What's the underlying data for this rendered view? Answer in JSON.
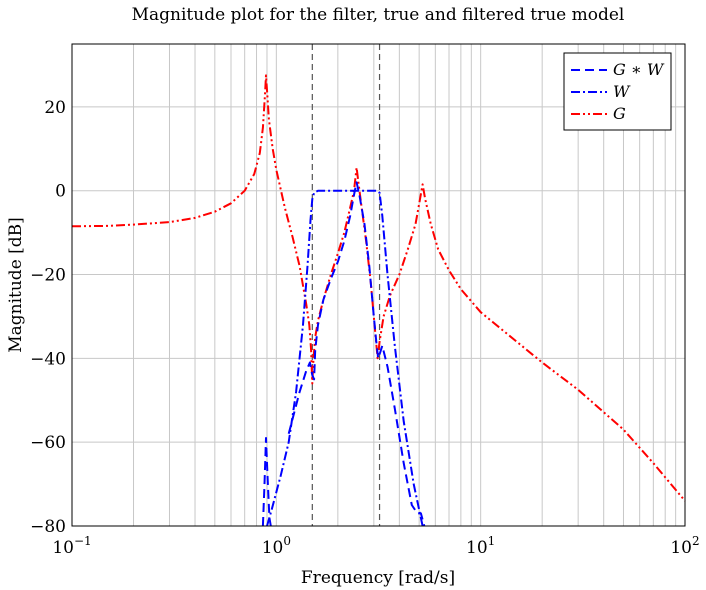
{
  "chart_data": {
    "type": "line",
    "title": "Magnitude plot for the filter, true and filtered true model",
    "xlabel": "Frequency [rad/s]",
    "ylabel": "Magnitude [dB]",
    "xscale": "log",
    "xlim": [
      0.1,
      100
    ],
    "ylim": [
      -80,
      35
    ],
    "grid": true,
    "legend_position": "top-right",
    "x_ticks": [
      {
        "value": 0.1,
        "base": "10",
        "exp": "−1"
      },
      {
        "value": 1,
        "base": "10",
        "exp": "0"
      },
      {
        "value": 10,
        "base": "10",
        "exp": "1"
      },
      {
        "value": 100,
        "base": "10",
        "exp": "2"
      }
    ],
    "y_ticks": [
      {
        "value": -80,
        "label": "−80"
      },
      {
        "value": -60,
        "label": "−60"
      },
      {
        "value": -40,
        "label": "−40"
      },
      {
        "value": -20,
        "label": "−20"
      },
      {
        "value": 0,
        "label": "0"
      },
      {
        "value": 20,
        "label": "20"
      }
    ],
    "vertical_markers": [
      1.5,
      3.2
    ],
    "series": [
      {
        "name": "G ∗ W",
        "color": "#0000ff",
        "dash": "dashed",
        "points": [
          [
            0.86,
            -80
          ],
          [
            0.875,
            -70
          ],
          [
            0.89,
            -59
          ],
          [
            0.905,
            -68
          ],
          [
            0.925,
            -78
          ],
          [
            0.94,
            -80
          ]
        ],
        "points2": [
          [
            1.15,
            -58
          ],
          [
            1.3,
            -48
          ],
          [
            1.4,
            -43
          ],
          [
            1.46,
            -41
          ],
          [
            1.5,
            -44
          ],
          [
            1.53,
            -45
          ],
          [
            1.55,
            -38
          ],
          [
            1.6,
            -32
          ],
          [
            1.7,
            -26
          ],
          [
            1.85,
            -21
          ],
          [
            2.0,
            -17
          ],
          [
            2.15,
            -12
          ],
          [
            2.3,
            -6
          ],
          [
            2.4,
            -1
          ],
          [
            2.47,
            2
          ],
          [
            2.55,
            -1
          ],
          [
            2.7,
            -8
          ],
          [
            2.85,
            -18
          ],
          [
            3.0,
            -30
          ],
          [
            3.1,
            -37
          ],
          [
            3.15,
            -40
          ],
          [
            3.2,
            -39
          ],
          [
            3.3,
            -37
          ],
          [
            3.5,
            -42
          ],
          [
            3.8,
            -52
          ],
          [
            4.2,
            -65
          ],
          [
            4.6,
            -75
          ],
          [
            4.9,
            -77
          ],
          [
            5.1,
            -77
          ],
          [
            5.3,
            -80
          ]
        ]
      },
      {
        "name": "W",
        "color": "#0000ff",
        "dash": "dashdot",
        "points": [
          [
            0.9,
            -80
          ],
          [
            0.95,
            -76
          ],
          [
            1.05,
            -68
          ],
          [
            1.15,
            -60
          ],
          [
            1.25,
            -48
          ],
          [
            1.35,
            -32
          ],
          [
            1.42,
            -18
          ],
          [
            1.47,
            -7
          ],
          [
            1.5,
            -2
          ],
          [
            1.53,
            -0.5
          ],
          [
            1.6,
            0
          ],
          [
            2.0,
            0
          ],
          [
            2.8,
            0
          ],
          [
            3.1,
            0
          ],
          [
            3.2,
            -0.5
          ],
          [
            3.3,
            -6
          ],
          [
            3.5,
            -20
          ],
          [
            3.8,
            -37
          ],
          [
            4.2,
            -55
          ],
          [
            4.7,
            -70
          ],
          [
            5.2,
            -80
          ]
        ]
      },
      {
        "name": "G",
        "color": "#ff0000",
        "dash": "dashdotdot",
        "points": [
          [
            0.1,
            -8.5
          ],
          [
            0.15,
            -8.4
          ],
          [
            0.2,
            -8.1
          ],
          [
            0.3,
            -7.5
          ],
          [
            0.4,
            -6.5
          ],
          [
            0.5,
            -5
          ],
          [
            0.6,
            -3
          ],
          [
            0.7,
            0
          ],
          [
            0.78,
            4
          ],
          [
            0.83,
            9
          ],
          [
            0.86,
            15
          ],
          [
            0.88,
            23
          ],
          [
            0.89,
            27.5
          ],
          [
            0.9,
            24
          ],
          [
            0.92,
            17
          ],
          [
            0.96,
            10
          ],
          [
            1.0,
            5
          ],
          [
            1.1,
            -4
          ],
          [
            1.2,
            -11
          ],
          [
            1.3,
            -18
          ],
          [
            1.4,
            -27
          ],
          [
            1.45,
            -32
          ],
          [
            1.48,
            -38
          ],
          [
            1.5,
            -46
          ],
          [
            1.52,
            -40
          ],
          [
            1.55,
            -35
          ],
          [
            1.6,
            -31
          ],
          [
            1.7,
            -26
          ],
          [
            1.85,
            -20
          ],
          [
            2.0,
            -15
          ],
          [
            2.15,
            -10
          ],
          [
            2.3,
            -4
          ],
          [
            2.4,
            0
          ],
          [
            2.47,
            5.5
          ],
          [
            2.52,
            2
          ],
          [
            2.6,
            -3
          ],
          [
            2.75,
            -12
          ],
          [
            2.9,
            -22
          ],
          [
            3.05,
            -34
          ],
          [
            3.13,
            -40
          ],
          [
            3.2,
            -36
          ],
          [
            3.35,
            -30
          ],
          [
            3.6,
            -25
          ],
          [
            4.0,
            -20
          ],
          [
            4.4,
            -14
          ],
          [
            4.8,
            -8
          ],
          [
            5.05,
            -2
          ],
          [
            5.2,
            1.5
          ],
          [
            5.35,
            -2
          ],
          [
            5.7,
            -8
          ],
          [
            6.2,
            -14
          ],
          [
            7.0,
            -19
          ],
          [
            8.0,
            -23.5
          ],
          [
            10,
            -29
          ],
          [
            15,
            -36
          ],
          [
            20,
            -41
          ],
          [
            30,
            -47.5
          ],
          [
            50,
            -57
          ],
          [
            70,
            -65
          ],
          [
            100,
            -74
          ]
        ]
      }
    ]
  }
}
